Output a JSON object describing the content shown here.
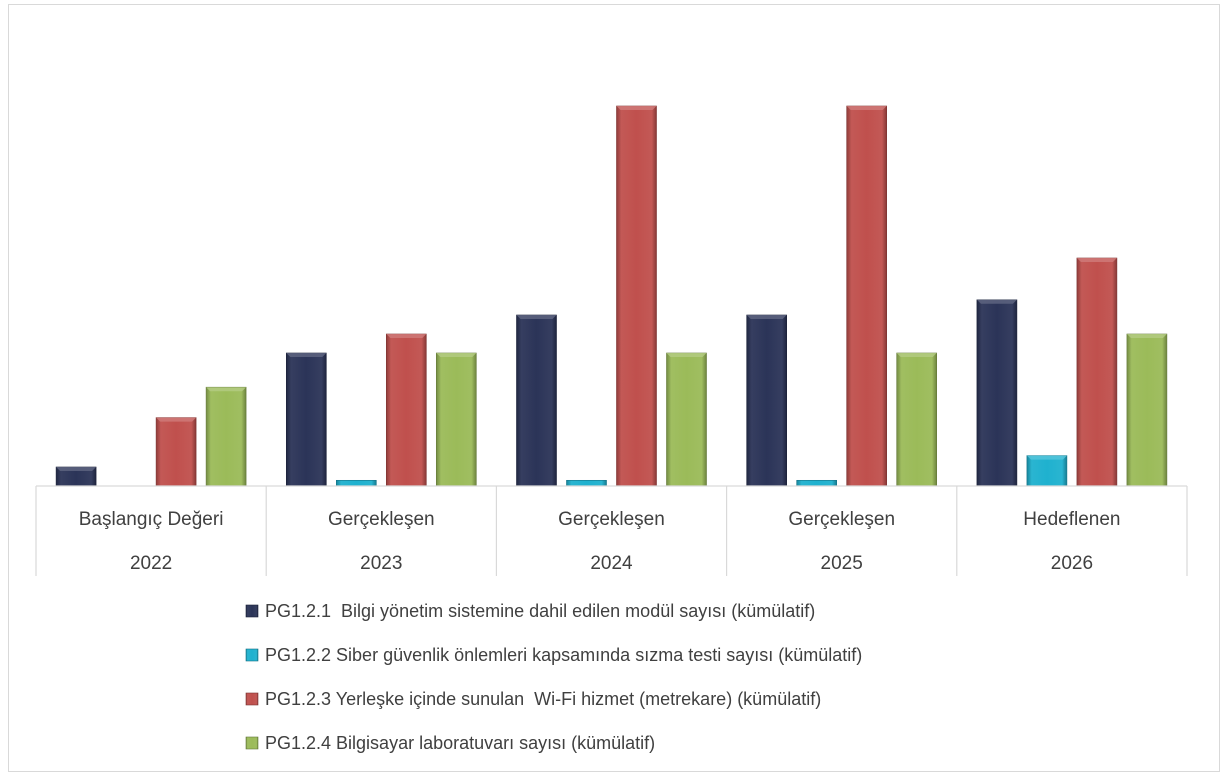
{
  "chart_data": {
    "type": "bar",
    "title": "",
    "xlabel": "",
    "ylabel": "",
    "categories": [
      "Başlangıç Değeri",
      "Gerçekleşen",
      "Gerçekleşen",
      "Gerçekleşen",
      "Hedeflenen"
    ],
    "years": [
      "2022",
      "2023",
      "2024",
      "2025",
      "2026"
    ],
    "ylim": [
      0,
      100
    ],
    "grid": false,
    "legend_position": "bottom",
    "series": [
      {
        "name": "PG1.2.1  Bilgi yönetim sistemine dahil edilen modül sayısı (kümülatif)",
        "color": "#2b3458",
        "values": [
          5,
          35,
          45,
          45,
          49
        ]
      },
      {
        "name": "PG1.2.2 Siber güvenlik önlemleri kapsamında sızma testi sayısı (kümülatif)",
        "color": "#1fb1cf",
        "values": [
          0,
          1.5,
          1.5,
          1.5,
          8
        ]
      },
      {
        "name": "PG1.2.3 Yerleşke içinde sunulan  Wi-Fi hizmet (metrekare) (kümülatif)",
        "color": "#c0504d",
        "values": [
          18,
          40,
          100,
          100,
          60
        ]
      },
      {
        "name": "PG1.2.4 Bilgisayar laboratuvarı sayısı (kümülatif)",
        "color": "#9bbb59",
        "values": [
          26,
          35,
          35,
          35,
          40
        ]
      }
    ]
  }
}
